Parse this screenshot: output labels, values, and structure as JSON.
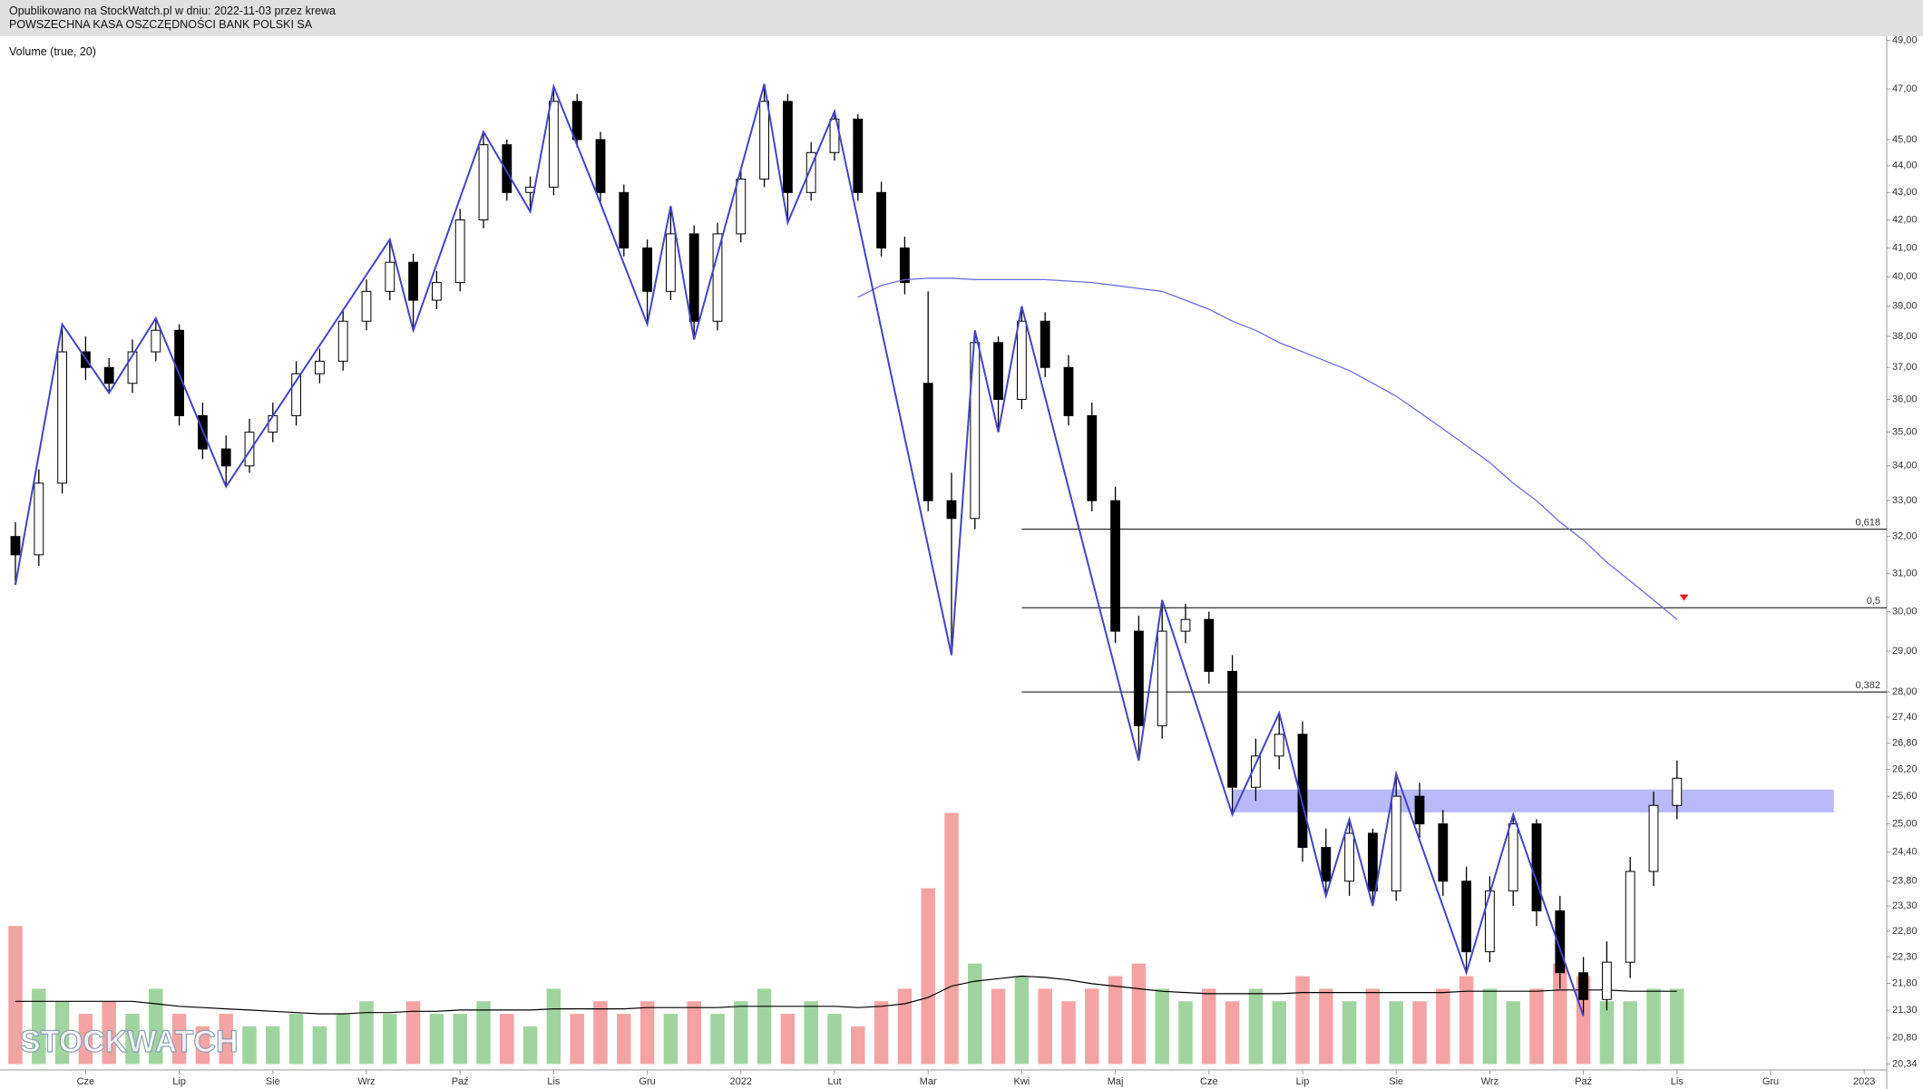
{
  "header": {
    "line1": "Opublikowano na StockWatch.pl w dniu: 2022-11-03 przez krewa",
    "line2": "POWSZECHNA KASA OSZCZĘDNOŚCI BANK POLSKI SA"
  },
  "chart_data": {
    "type": "candlestick",
    "indicator_label": "Volume (true, 20)",
    "watermark": "STOCKWATCH",
    "categories": [
      null,
      null,
      null,
      "Cze",
      null,
      null,
      null,
      "Lip",
      null,
      null,
      null,
      "Sie",
      null,
      null,
      null,
      "Wrz",
      null,
      null,
      null,
      "Paź",
      null,
      null,
      null,
      "Lis",
      null,
      null,
      null,
      "Gru",
      null,
      null,
      null,
      "2022",
      null,
      null,
      null,
      "Lut",
      null,
      null,
      null,
      "Mar",
      null,
      null,
      null,
      "Kwi",
      null,
      null,
      null,
      "Maj",
      null,
      null,
      null,
      "Cze",
      null,
      null,
      null,
      "Lip",
      null,
      null,
      null,
      "Sie",
      null,
      null,
      null,
      "Wrz",
      null,
      null,
      null,
      "Paź",
      null,
      null,
      null,
      "Lis",
      null,
      null,
      null,
      "Gru",
      null,
      null,
      null,
      "2023"
    ],
    "open": [
      32.0,
      31.5,
      33.5,
      37.5,
      37.0,
      36.5,
      37.5,
      38.2,
      35.5,
      34.5,
      34.0,
      35.0,
      35.5,
      36.8,
      37.2,
      38.5,
      39.5,
      40.5,
      39.2,
      39.8,
      42.0,
      44.8,
      43.0,
      43.2,
      46.5,
      45.0,
      43.0,
      41.0,
      39.5,
      41.5,
      38.5,
      41.5,
      43.5,
      46.5,
      43.0,
      44.5,
      45.8,
      43.0,
      41.0,
      36.5,
      33.0,
      32.5,
      37.8,
      36.0,
      38.5,
      37.0,
      35.5,
      33.0,
      29.5,
      27.2,
      29.5,
      29.8,
      28.5,
      25.8,
      26.5,
      27.0,
      24.5,
      23.8,
      24.8,
      23.6,
      25.6,
      25.0,
      23.8,
      22.4,
      23.6,
      25.0,
      23.2,
      22.0,
      21.5,
      22.2,
      24.0,
      25.4,
      null,
      null,
      null,
      null,
      null,
      null,
      null,
      null
    ],
    "high": [
      32.4,
      33.9,
      38.4,
      38.0,
      37.3,
      37.9,
      38.6,
      38.4,
      35.9,
      34.9,
      35.4,
      35.9,
      37.2,
      37.6,
      38.9,
      39.9,
      41.3,
      40.8,
      40.2,
      42.4,
      45.3,
      45.0,
      43.6,
      47.1,
      46.8,
      45.3,
      43.3,
      41.3,
      42.5,
      41.8,
      41.9,
      43.9,
      47.2,
      46.8,
      44.9,
      46.1,
      46.0,
      43.4,
      41.4,
      39.5,
      33.8,
      38.2,
      38.0,
      39.0,
      38.8,
      37.4,
      35.9,
      33.4,
      29.9,
      30.3,
      30.2,
      30.0,
      28.9,
      26.9,
      27.5,
      27.3,
      24.9,
      25.1,
      24.9,
      26.1,
      25.9,
      25.3,
      24.1,
      23.9,
      25.2,
      25.1,
      23.5,
      22.3,
      22.6,
      24.3,
      25.7,
      26.4,
      null,
      null,
      null,
      null,
      null,
      null,
      null,
      null
    ],
    "low": [
      30.7,
      31.2,
      33.2,
      36.6,
      36.2,
      36.2,
      37.2,
      35.2,
      34.2,
      33.4,
      33.8,
      34.7,
      35.2,
      36.5,
      36.9,
      38.2,
      39.2,
      38.2,
      38.9,
      39.5,
      41.7,
      42.7,
      42.3,
      42.9,
      44.7,
      42.6,
      40.7,
      38.4,
      39.2,
      37.9,
      38.2,
      41.2,
      43.2,
      41.9,
      42.7,
      44.2,
      42.7,
      40.7,
      39.4,
      32.7,
      28.9,
      32.2,
      35.0,
      35.7,
      36.7,
      35.2,
      32.7,
      29.2,
      26.4,
      26.9,
      29.2,
      28.2,
      25.2,
      25.5,
      26.2,
      24.2,
      23.5,
      23.5,
      23.3,
      23.4,
      24.7,
      23.5,
      22.0,
      22.2,
      23.3,
      22.9,
      21.7,
      21.2,
      21.3,
      21.9,
      23.7,
      25.1,
      null,
      null,
      null,
      null,
      null,
      null,
      null,
      null
    ],
    "close": [
      31.5,
      33.5,
      37.5,
      37.0,
      36.5,
      37.5,
      38.2,
      35.5,
      34.5,
      34.0,
      35.0,
      35.5,
      36.8,
      37.2,
      38.5,
      39.5,
      40.5,
      39.2,
      39.8,
      42.0,
      44.8,
      43.0,
      43.2,
      46.5,
      45.0,
      43.0,
      41.0,
      39.5,
      41.5,
      38.5,
      41.5,
      43.5,
      46.5,
      43.0,
      44.5,
      45.8,
      43.0,
      41.0,
      39.8,
      33.0,
      32.5,
      37.8,
      36.0,
      38.5,
      37.0,
      35.5,
      33.0,
      29.5,
      27.2,
      29.5,
      29.8,
      28.5,
      25.8,
      26.5,
      27.0,
      24.5,
      23.8,
      24.8,
      23.6,
      25.6,
      25.0,
      23.8,
      22.4,
      23.6,
      25.0,
      23.2,
      22.0,
      21.5,
      22.2,
      24.0,
      25.4,
      26.0,
      null,
      null,
      null,
      null,
      null,
      null,
      null,
      null
    ],
    "volume": [
      11,
      6,
      5,
      4,
      5,
      4,
      6,
      4,
      3,
      4,
      3,
      3,
      4,
      3,
      4,
      5,
      4,
      5,
      4,
      4,
      5,
      4,
      3,
      6,
      4,
      5,
      4,
      5,
      4,
      5,
      4,
      5,
      6,
      4,
      5,
      4,
      3,
      5,
      6,
      14,
      20,
      8,
      6,
      7,
      6,
      5,
      6,
      7,
      8,
      6,
      5,
      6,
      5,
      6,
      5,
      7,
      6,
      5,
      6,
      5,
      5,
      6,
      7,
      6,
      5,
      6,
      8,
      7,
      5,
      5,
      6,
      6,
      null,
      null,
      null,
      null,
      null,
      null,
      null,
      null
    ],
    "volume_ma": [
      5,
      5,
      5,
      5,
      5,
      5,
      4.8,
      4.6,
      4.5,
      4.4,
      4.3,
      4.2,
      4.1,
      4.0,
      4.0,
      4.1,
      4.1,
      4.2,
      4.2,
      4.3,
      4.3,
      4.3,
      4.3,
      4.4,
      4.4,
      4.4,
      4.4,
      4.5,
      4.5,
      4.5,
      4.5,
      4.6,
      4.6,
      4.6,
      4.6,
      4.6,
      4.5,
      4.6,
      4.8,
      5.3,
      6.2,
      6.6,
      6.8,
      7.0,
      6.9,
      6.7,
      6.4,
      6.2,
      6.0,
      5.8,
      5.7,
      5.6,
      5.6,
      5.6,
      5.6,
      5.7,
      5.7,
      5.7,
      5.7,
      5.7,
      5.7,
      5.7,
      5.8,
      5.8,
      5.8,
      5.8,
      5.9,
      5.9,
      5.9,
      5.8,
      5.8,
      5.8,
      null,
      null,
      null,
      null,
      null,
      null,
      null,
      null
    ],
    "ma": [
      null,
      null,
      null,
      null,
      null,
      null,
      null,
      null,
      null,
      null,
      null,
      null,
      null,
      null,
      null,
      null,
      null,
      null,
      null,
      null,
      null,
      null,
      null,
      null,
      null,
      null,
      null,
      null,
      null,
      null,
      null,
      null,
      null,
      null,
      null,
      null,
      39.3,
      39.7,
      39.9,
      39.95,
      39.95,
      39.9,
      39.9,
      39.9,
      39.9,
      39.85,
      39.8,
      39.7,
      39.6,
      39.5,
      39.2,
      38.9,
      38.5,
      38.2,
      37.8,
      37.5,
      37.2,
      36.9,
      36.5,
      36.1,
      35.6,
      35.1,
      34.6,
      34.1,
      33.5,
      33.0,
      32.4,
      31.9,
      31.3,
      30.8,
      30.3,
      29.8,
      null,
      null,
      null,
      null,
      null,
      null,
      null,
      null
    ],
    "candle_color": "#000000",
    "up_volume_color": "#9fd49f",
    "down_volume_color": "#f4a3a3",
    "volume_ma_color": "#000000",
    "ma_color": "#6b6be0",
    "log_scale": true,
    "ylim": [
      20.34,
      49
    ],
    "yticks": [
      {
        "value": 49,
        "label": "49,00"
      },
      {
        "value": 47,
        "label": "47,00"
      },
      {
        "value": 45,
        "label": "45,00"
      },
      {
        "value": 44,
        "label": "44,00"
      },
      {
        "value": 43,
        "label": "43,00"
      },
      {
        "value": 42,
        "label": "42,00"
      },
      {
        "value": 41,
        "label": "41,00"
      },
      {
        "value": 40,
        "label": "40,00"
      },
      {
        "value": 39,
        "label": "39,00"
      },
      {
        "value": 38,
        "label": "38,00"
      },
      {
        "value": 37,
        "label": "37,00"
      },
      {
        "value": 36,
        "label": "36,00"
      },
      {
        "value": 35,
        "label": "35,00"
      },
      {
        "value": 34,
        "label": "34,00"
      },
      {
        "value": 33,
        "label": "33,00"
      },
      {
        "value": 32,
        "label": "32,00"
      },
      {
        "value": 31,
        "label": "31,00"
      },
      {
        "value": 30,
        "label": "30,00"
      },
      {
        "value": 29,
        "label": "29,00"
      },
      {
        "value": 28,
        "label": "28,00"
      },
      {
        "value": 27.4,
        "label": "27,40"
      },
      {
        "value": 26.8,
        "label": "26,80"
      },
      {
        "value": 26.2,
        "label": "26,20"
      },
      {
        "value": 25.6,
        "label": "25,60"
      },
      {
        "value": 25,
        "label": "25,00"
      },
      {
        "value": 24.4,
        "label": "24,40"
      },
      {
        "value": 23.8,
        "label": "23,80"
      },
      {
        "value": 23.3,
        "label": "23,30"
      },
      {
        "value": 22.8,
        "label": "22,80"
      },
      {
        "value": 22.3,
        "label": "22,30"
      },
      {
        "value": 21.8,
        "label": "21,80"
      },
      {
        "value": 21.3,
        "label": "21,30"
      },
      {
        "value": 20.8,
        "label": "20,80"
      },
      {
        "value": 20.34,
        "label": "20,34"
      }
    ],
    "zigzag": {
      "color": "#4343c8",
      "x": [
        0,
        2,
        4,
        6,
        9,
        16,
        17,
        20,
        22,
        23,
        25,
        27,
        28,
        29,
        32,
        33,
        35,
        40,
        41,
        42,
        43,
        48,
        49,
        52,
        54,
        56,
        57,
        58,
        59,
        62,
        64,
        67
      ],
      "y": [
        30.7,
        38.4,
        36.2,
        38.6,
        33.4,
        41.3,
        38.2,
        45.3,
        42.3,
        47.1,
        42.6,
        38.4,
        42.5,
        37.9,
        47.2,
        41.9,
        46.1,
        28.9,
        38.2,
        35.0,
        39.0,
        26.4,
        30.3,
        25.2,
        27.5,
        23.5,
        25.1,
        23.3,
        26.1,
        22.0,
        25.2,
        21.2
      ]
    },
    "fib_levels": [
      {
        "value": 32.2,
        "label": "0,618"
      },
      {
        "value": 30.1,
        "label": "0,5"
      },
      {
        "value": 28.0,
        "label": "0,382"
      }
    ],
    "zone": {
      "color": "#b9b9f7",
      "x": [
        52,
        77.7
      ],
      "y": [
        25.25,
        25.75
      ]
    },
    "alert": {
      "color": "#e02020",
      "x": 71.3,
      "y": 30.35
    }
  }
}
